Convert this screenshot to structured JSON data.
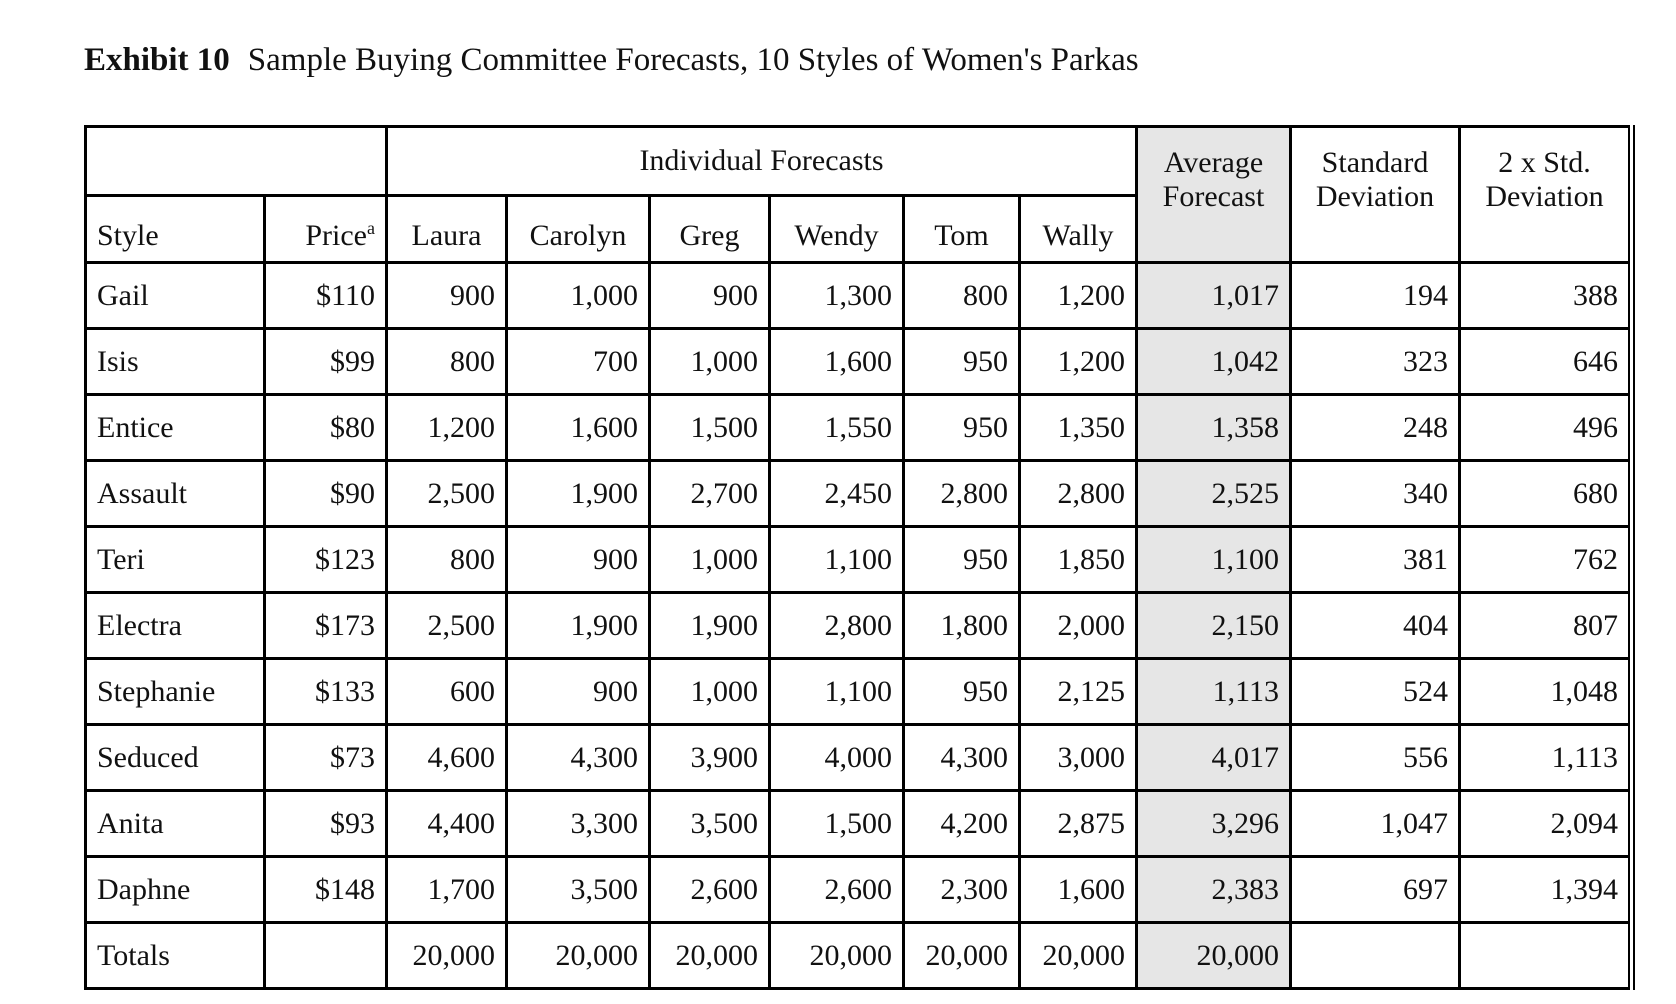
{
  "header": {
    "label": "Exhibit 10",
    "title": "Sample Buying Committee Forecasts, 10 Styles of Women's Parkas"
  },
  "table": {
    "group_header": "Individual Forecasts",
    "style_header": "Style",
    "price_header": {
      "text": "Price",
      "note": "a"
    },
    "forecasters": [
      "Laura",
      "Carolyn",
      "Greg",
      "Wendy",
      "Tom",
      "Wally"
    ],
    "average_header": [
      "Average",
      "Forecast"
    ],
    "std_header": [
      "Standard",
      "Deviation"
    ],
    "two_std_header": [
      "2 x Std.",
      "Deviation"
    ],
    "rows": [
      {
        "style": "Gail",
        "price": "$110",
        "forecasts": [
          "900",
          "1,000",
          "900",
          "1,300",
          "800",
          "1,200"
        ],
        "average": "1,017",
        "std": "194",
        "two_std": "388"
      },
      {
        "style": "Isis",
        "price": "$99",
        "forecasts": [
          "800",
          "700",
          "1,000",
          "1,600",
          "950",
          "1,200"
        ],
        "average": "1,042",
        "std": "323",
        "two_std": "646"
      },
      {
        "style": "Entice",
        "price": "$80",
        "forecasts": [
          "1,200",
          "1,600",
          "1,500",
          "1,550",
          "950",
          "1,350"
        ],
        "average": "1,358",
        "std": "248",
        "two_std": "496"
      },
      {
        "style": "Assault",
        "price": "$90",
        "forecasts": [
          "2,500",
          "1,900",
          "2,700",
          "2,450",
          "2,800",
          "2,800"
        ],
        "average": "2,525",
        "std": "340",
        "two_std": "680"
      },
      {
        "style": "Teri",
        "price": "$123",
        "forecasts": [
          "800",
          "900",
          "1,000",
          "1,100",
          "950",
          "1,850"
        ],
        "average": "1,100",
        "std": "381",
        "two_std": "762"
      },
      {
        "style": "Electra",
        "price": "$173",
        "forecasts": [
          "2,500",
          "1,900",
          "1,900",
          "2,800",
          "1,800",
          "2,000"
        ],
        "average": "2,150",
        "std": "404",
        "two_std": "807"
      },
      {
        "style": "Stephanie",
        "price": "$133",
        "forecasts": [
          "600",
          "900",
          "1,000",
          "1,100",
          "950",
          "2,125"
        ],
        "average": "1,113",
        "std": "524",
        "two_std": "1,048"
      },
      {
        "style": "Seduced",
        "price": "$73",
        "forecasts": [
          "4,600",
          "4,300",
          "3,900",
          "4,000",
          "4,300",
          "3,000"
        ],
        "average": "4,017",
        "std": "556",
        "two_std": "1,113"
      },
      {
        "style": "Anita",
        "price": "$93",
        "forecasts": [
          "4,400",
          "3,300",
          "3,500",
          "1,500",
          "4,200",
          "2,875"
        ],
        "average": "3,296",
        "std": "1,047",
        "two_std": "2,094"
      },
      {
        "style": "Daphne",
        "price": "$148",
        "forecasts": [
          "1,700",
          "3,500",
          "2,600",
          "2,600",
          "2,300",
          "1,600"
        ],
        "average": "2,383",
        "std": "697",
        "two_std": "1,394"
      }
    ],
    "totals": {
      "label": "Totals",
      "forecasts": [
        "20,000",
        "20,000",
        "20,000",
        "20,000",
        "20,000",
        "20,000"
      ],
      "average": "20,000"
    }
  }
}
